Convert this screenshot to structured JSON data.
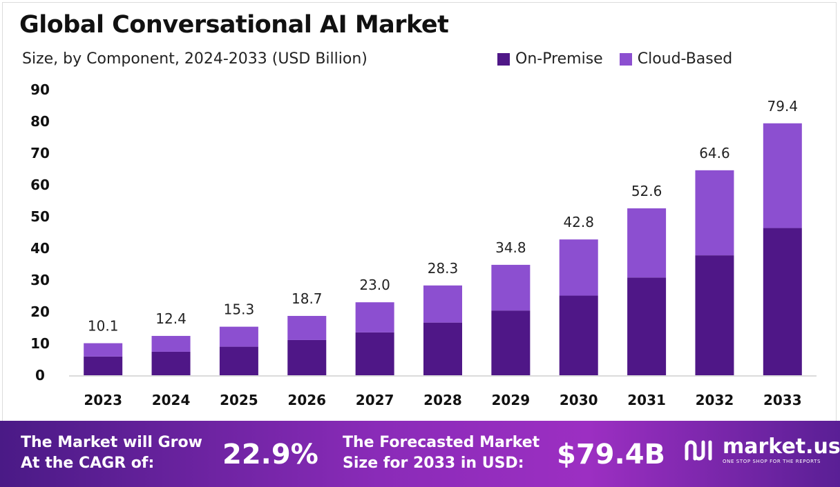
{
  "header": {
    "title": "Global Conversational AI Market",
    "subtitle": "Size, by Component, 2024-2033 (USD Billion)"
  },
  "legend": {
    "items": [
      {
        "label": "On-Premise",
        "color": "#4f1787"
      },
      {
        "label": "Cloud-Based",
        "color": "#8c4fd0"
      }
    ]
  },
  "chart_data": {
    "type": "bar",
    "stacked": true,
    "categories": [
      "2023",
      "2024",
      "2025",
      "2026",
      "2027",
      "2028",
      "2029",
      "2030",
      "2031",
      "2032",
      "2033"
    ],
    "series": [
      {
        "name": "On-Premise",
        "values": [
          5.9,
          7.4,
          9.0,
          11.1,
          13.5,
          16.6,
          20.4,
          25.1,
          30.8,
          37.8,
          46.4
        ]
      },
      {
        "name": "Cloud-Based",
        "values": [
          4.2,
          5.0,
          6.3,
          7.6,
          9.5,
          11.7,
          14.4,
          17.7,
          21.8,
          26.8,
          33.0
        ]
      }
    ],
    "totals": [
      "10.1",
      "12.4",
      "15.3",
      "18.7",
      "23.0",
      "28.3",
      "34.8",
      "42.8",
      "52.6",
      "64.6",
      "79.4"
    ],
    "ylim": [
      0,
      90
    ],
    "yticks": [
      "0",
      "10",
      "20",
      "30",
      "40",
      "50",
      "60",
      "70",
      "80",
      "90"
    ],
    "grid": false,
    "legend_position": "top-right"
  },
  "footer": {
    "cagr_line1": "The Market will Grow",
    "cagr_line2": "At the CAGR of:",
    "cagr_value": "22.9%",
    "forecast_line1": "The Forecasted Market",
    "forecast_line2": "Size for 2033 in USD:",
    "forecast_value": "$79.4B",
    "brand_name": "market.us",
    "brand_tagline": "ONE STOP SHOP FOR THE REPORTS"
  }
}
